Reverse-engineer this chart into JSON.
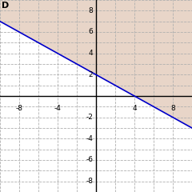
{
  "title": "D",
  "xlim": [
    -10,
    10
  ],
  "ylim": [
    -9,
    9
  ],
  "xticks": [
    -8,
    -4,
    4,
    8
  ],
  "yticks": [
    -8,
    -6,
    -4,
    -2,
    2,
    4,
    6,
    8
  ],
  "slope": -0.5,
  "intercept": 2.0,
  "line_color": "#0000cc",
  "line_width": 1.2,
  "shade_color": "#e8d5c8",
  "background_color": "#ffffff",
  "grid_color": "#b0b0b0",
  "title_fontsize": 8,
  "tick_fontsize": 6.5,
  "label_color": "#000000"
}
